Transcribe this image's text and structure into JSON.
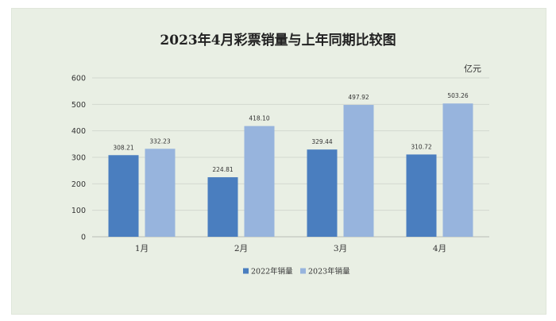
{
  "chart_data": {
    "type": "bar",
    "title": "2023年4月彩票销量与上年同期比较图",
    "unit_label": "亿元",
    "categories": [
      "1月",
      "2月",
      "3月",
      "4月"
    ],
    "series": [
      {
        "name": "2022年销量",
        "values": [
          308.21,
          224.81,
          329.44,
          310.72
        ],
        "labels": [
          "308.21",
          "224.81",
          "329.44",
          "310.72"
        ],
        "color": "#4a7ebf"
      },
      {
        "name": "2023年销量",
        "values": [
          332.23,
          418.1,
          497.92,
          503.26
        ],
        "labels": [
          "332.23",
          "418.10",
          "497.92",
          "503.26"
        ],
        "color": "#97b4dd"
      }
    ],
    "ylim": [
      0,
      600
    ],
    "yticks": [
      0,
      100,
      200,
      300,
      400,
      500,
      600
    ],
    "grid": true,
    "legend_position": "bottom"
  }
}
